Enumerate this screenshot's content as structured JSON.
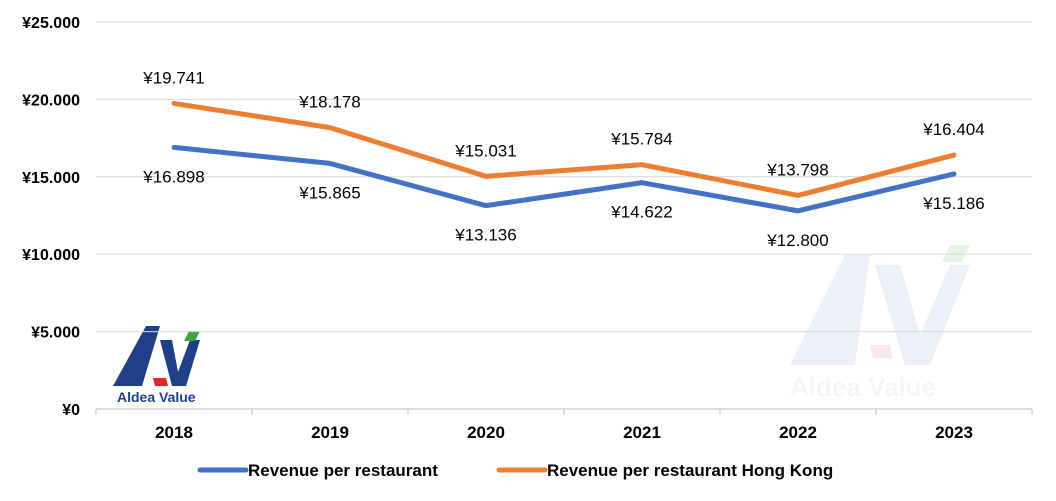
{
  "chart_data": {
    "type": "line",
    "categories": [
      "2018",
      "2019",
      "2020",
      "2021",
      "2022",
      "2023"
    ],
    "series": [
      {
        "name": "Revenue per restaurant",
        "values": [
          16898,
          15865,
          13136,
          14622,
          12800,
          15186
        ],
        "labels": [
          "¥16.898",
          "¥15.865",
          "¥13.136",
          "¥14.622",
          "¥12.800",
          "¥15.186"
        ],
        "color": "#4472c4"
      },
      {
        "name": "Revenue per restaurant Hong Kong",
        "values": [
          19741,
          18178,
          15031,
          15784,
          13798,
          16404
        ],
        "labels": [
          "¥19.741",
          "¥18.178",
          "¥15.031",
          "¥15.784",
          "¥13.798",
          "¥16.404"
        ],
        "color": "#ed7d31"
      }
    ],
    "ylim": [
      0,
      25000
    ],
    "yticks": [
      0,
      5000,
      10000,
      15000,
      20000,
      25000
    ],
    "ytick_labels": [
      "¥0",
      "¥5.000",
      "¥10.000",
      "¥15.000",
      "¥20.000",
      "¥25.000"
    ],
    "grid": true,
    "legend_position": "bottom"
  },
  "branding": {
    "logo_text": "Aldea Value",
    "watermark_text": "Aldea Value",
    "logo_color": "#1f3f86",
    "accent_green": "#3aa640",
    "accent_red": "#e2262b"
  }
}
